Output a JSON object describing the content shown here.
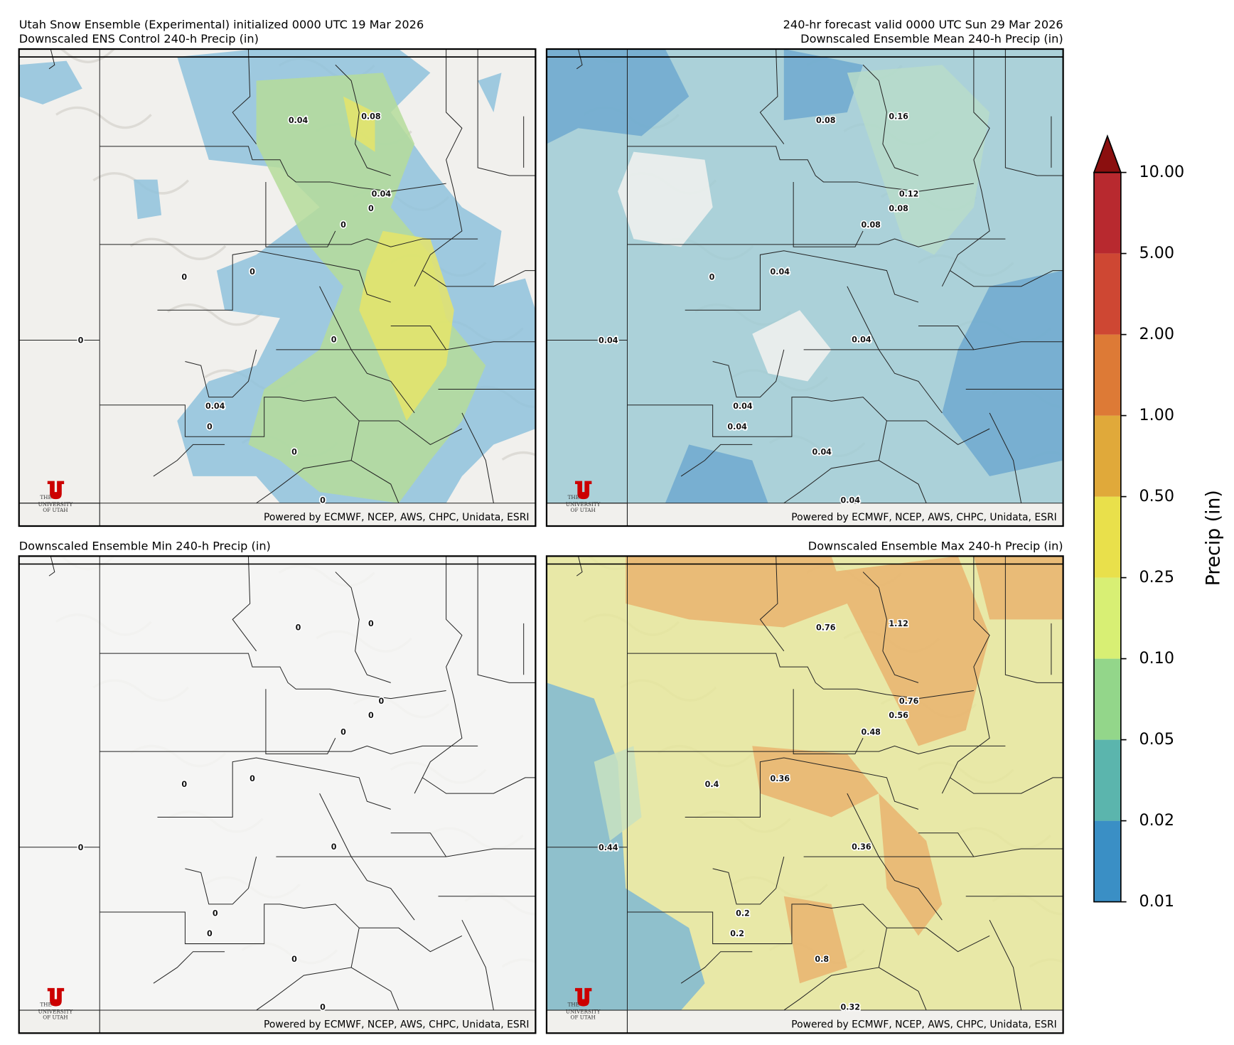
{
  "header": {
    "left": "Utah Snow Ensemble (Experimental) initialized 0000 UTC 19 Mar 2026",
    "right": "240-hr forecast valid 0000 UTC Sun 29 Mar 2026"
  },
  "panels": [
    {
      "title": "Downscaled ENS Control 240-h Precip (in)",
      "labels": [
        0.04,
        0.08,
        0.04,
        0,
        0,
        0,
        0,
        0,
        0,
        0.04,
        0,
        0,
        0
      ]
    },
    {
      "title": "Downscaled Ensemble Mean 240-h Precip (in)",
      "labels": [
        0.08,
        0.16,
        0.12,
        0.08,
        0.08,
        0.04,
        0,
        0.04,
        0.04,
        0.04,
        0.04,
        0.04,
        0.04
      ]
    },
    {
      "title": "Downscaled Ensemble Min 240-h Precip (in)",
      "labels": [
        0,
        0,
        0,
        0,
        0,
        0,
        0,
        0,
        0,
        0,
        0,
        0,
        0
      ]
    },
    {
      "title": "Downscaled Ensemble Max 240-h Precip (in)",
      "labels": [
        0.76,
        1.12,
        0.76,
        0.56,
        0.48,
        0.36,
        0.4,
        0.44,
        0.36,
        0.2,
        0.2,
        0.8,
        0.32
      ]
    }
  ],
  "credit": "Powered by ECMWF, NCEP, AWS, CHPC, Unidata, ESRI",
  "logo": [
    "THE",
    "UNIVERSITY",
    "OF UTAH"
  ],
  "colorbar": {
    "label": "Precip (in)",
    "ticks": [
      {
        "value": 0.01,
        "label": "0.01"
      },
      {
        "value": 0.02,
        "label": "0.02"
      },
      {
        "value": 0.05,
        "label": "0.05"
      },
      {
        "value": 0.1,
        "label": "0.10"
      },
      {
        "value": 0.25,
        "label": "0.25"
      },
      {
        "value": 0.5,
        "label": "0.50"
      },
      {
        "value": 1,
        "label": "1.00"
      },
      {
        "value": 2,
        "label": "2.00"
      },
      {
        "value": 5,
        "label": "5.00"
      },
      {
        "value": 10,
        "label": "10.00"
      }
    ],
    "colors": [
      "#3a8fc5",
      "#5bb5ad",
      "#93d68a",
      "#d8ef74",
      "#e9e04b",
      "#e0a93a",
      "#dd7a36",
      "#ce4733",
      "#b8292f"
    ],
    "extend_color": "#8b0f0f"
  }
}
